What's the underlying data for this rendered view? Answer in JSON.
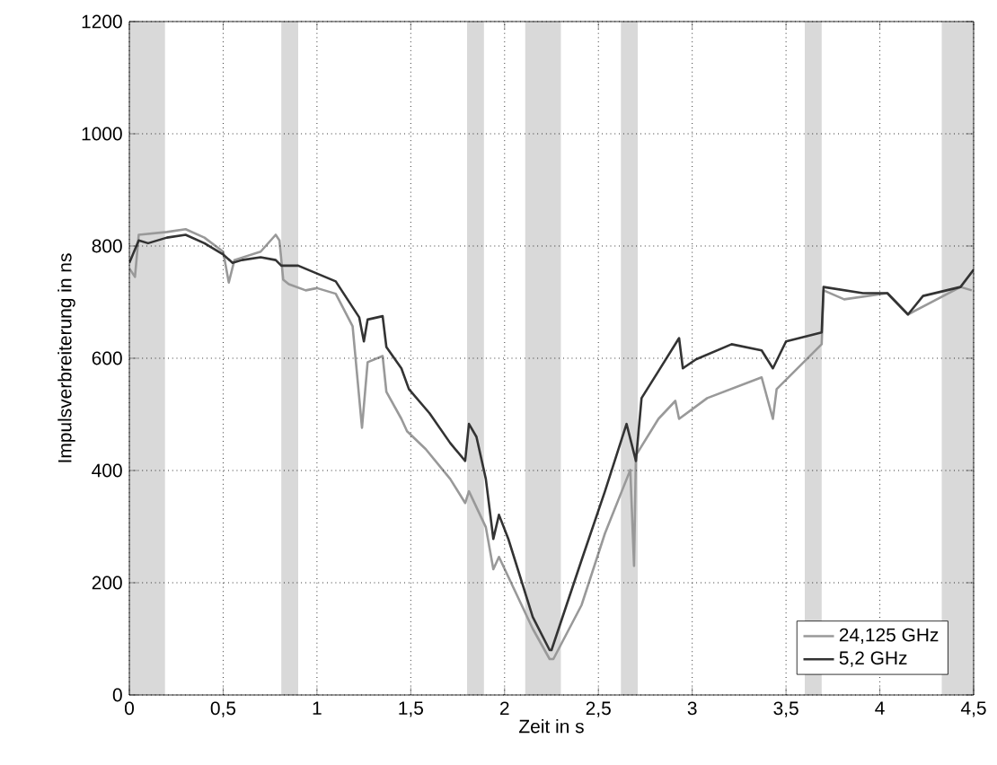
{
  "chart_data": {
    "type": "line",
    "xlabel": "Zeit in s",
    "ylabel": "Impulsverbreiterung in ns",
    "xlim": [
      0,
      4.5
    ],
    "ylim": [
      0,
      1200
    ],
    "xticks": [
      0,
      {
        "value": 0.5,
        "label": "0,5"
      },
      1,
      {
        "value": 1.5,
        "label": "1,5"
      },
      2,
      {
        "value": 2.5,
        "label": "2,5"
      },
      3,
      {
        "value": 3.5,
        "label": "3,5"
      },
      4,
      {
        "value": 4.5,
        "label": "4,5"
      }
    ],
    "yticks": [
      0,
      200,
      400,
      600,
      800,
      1000,
      1200
    ],
    "grid": true,
    "legend": "bottom right",
    "line_style": "solid",
    "marker": "none",
    "bands": [
      {
        "axis": "x",
        "from": 0,
        "to": 0.19,
        "color": "#d9d9d9"
      },
      {
        "axis": "x",
        "from": 0.81,
        "to": 0.9,
        "color": "#d9d9d9"
      },
      {
        "axis": "x",
        "from": 1.8,
        "to": 1.89,
        "color": "#d9d9d9"
      },
      {
        "axis": "x",
        "from": 2.11,
        "to": 2.3,
        "color": "#d9d9d9"
      },
      {
        "axis": "x",
        "from": 2.62,
        "to": 2.71,
        "color": "#d9d9d9"
      },
      {
        "axis": "x",
        "from": 3.6,
        "to": 3.69,
        "color": "#d9d9d9"
      },
      {
        "axis": "x",
        "from": 4.33,
        "to": 4.5,
        "color": "#d9d9d9"
      }
    ],
    "series": [
      {
        "name": "24,125 GHz",
        "color": "#999999",
        "x": [
          0,
          0.03,
          0.05,
          0.2,
          0.3,
          0.4,
          0.5,
          0.53,
          0.56,
          0.7,
          0.78,
          0.8,
          0.82,
          0.85,
          0.94,
          1.0,
          1.1,
          1.19,
          1.24,
          1.27,
          1.35,
          1.37,
          1.45,
          1.48,
          1.58,
          1.71,
          1.79,
          1.81,
          1.9,
          1.94,
          1.97,
          2.15,
          2.24,
          2.26,
          2.41,
          2.535,
          2.67,
          2.69,
          2.7,
          2.82,
          2.91,
          2.93,
          3.08,
          3.37,
          3.43,
          3.45,
          3.69,
          3.7,
          3.81,
          4.04,
          4.15,
          4.43,
          4.49
        ],
        "values": [
          760,
          745,
          820,
          825,
          830,
          815,
          790,
          735,
          775,
          790,
          820,
          810,
          740,
          732,
          721,
          725,
          715,
          657,
          476,
          593,
          604,
          540,
          492,
          470,
          438,
          385,
          342,
          363,
          299,
          224,
          246,
          118,
          64,
          64,
          160,
          288,
          401,
          230,
          427,
          492,
          524,
          492,
          529,
          566,
          492,
          545,
          625,
          721,
          705,
          716,
          678,
          727,
          721
        ]
      },
      {
        "name": "5,2 GHz",
        "color": "#333333",
        "x": [
          0,
          0.05,
          0.1,
          0.2,
          0.3,
          0.4,
          0.45,
          0.5,
          0.55,
          0.6,
          0.7,
          0.78,
          0.81,
          0.9,
          1.1,
          1.225,
          1.25,
          1.27,
          1.35,
          1.37,
          1.45,
          1.49,
          1.6,
          1.71,
          1.79,
          1.81,
          1.85,
          1.9,
          1.94,
          1.97,
          2.02,
          2.15,
          2.24,
          2.25,
          2.41,
          2.535,
          2.65,
          2.7,
          2.73,
          2.82,
          2.93,
          2.95,
          3.02,
          3.21,
          3.37,
          3.43,
          3.5,
          3.69,
          3.7,
          3.91,
          4.04,
          4.15,
          4.23,
          4.43,
          4.5
        ],
        "values": [
          770,
          810,
          805,
          815,
          820,
          805,
          795,
          785,
          770,
          775,
          780,
          775,
          765,
          765,
          737,
          673,
          630,
          669,
          675,
          620,
          582,
          545,
          502,
          449,
          417,
          483,
          460,
          385,
          278,
          321,
          278,
          139,
          80,
          80,
          240,
          363,
          483,
          417,
          529,
          577,
          636,
          582,
          598,
          625,
          614,
          582,
          630,
          646,
          727,
          716,
          716,
          678,
          711,
          727,
          758
        ]
      }
    ]
  }
}
